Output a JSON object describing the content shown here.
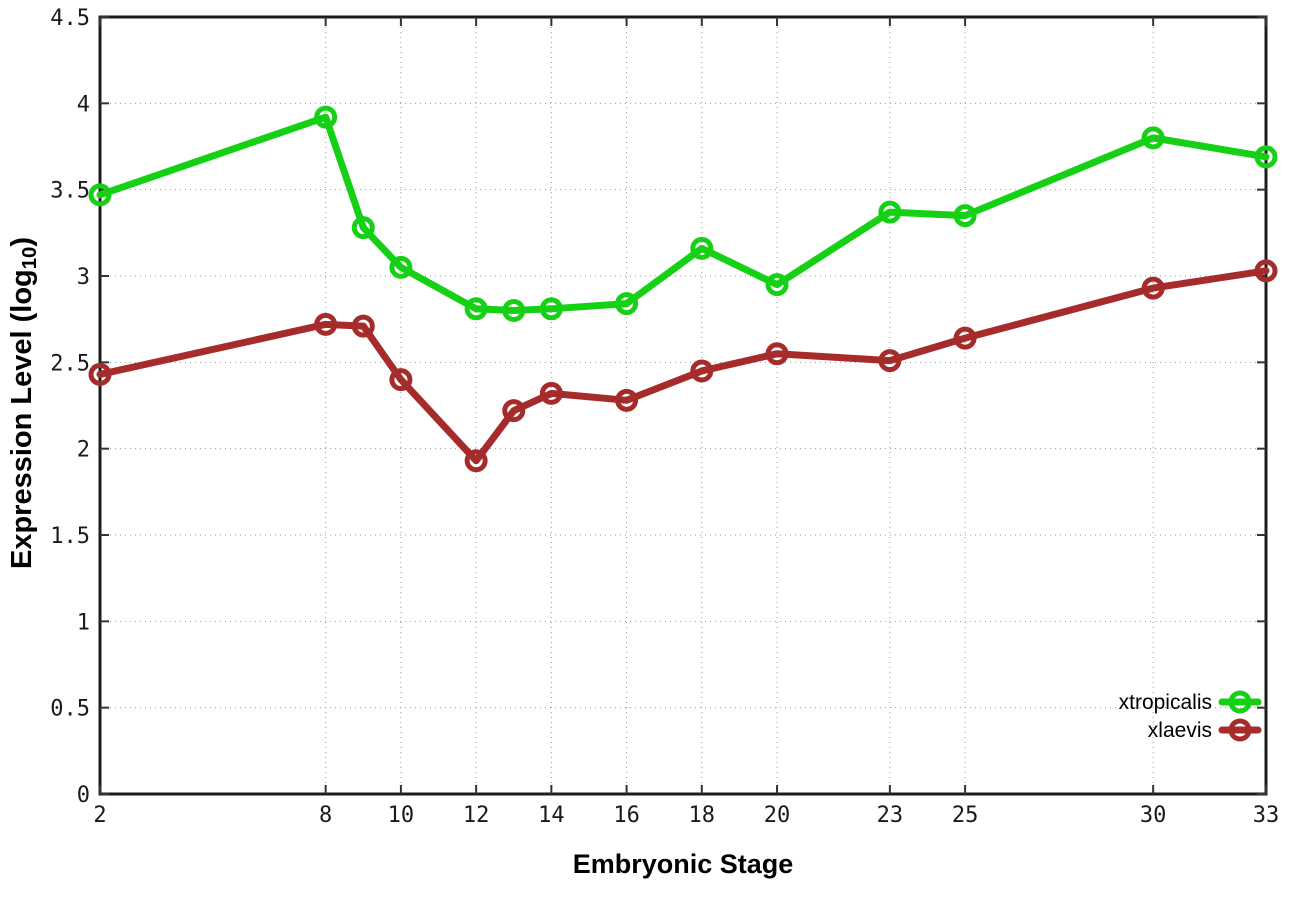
{
  "chart_data": {
    "type": "line",
    "title": "",
    "xlabel": "Embryonic Stage",
    "ylabel": {
      "pre": "Expression Level (log",
      "sub": "10",
      "post": ")"
    },
    "x": [
      2,
      8,
      9,
      10,
      12,
      13,
      14,
      16,
      18,
      20,
      23,
      25,
      30,
      33
    ],
    "x_tick_labels": [
      2,
      8,
      10,
      12,
      14,
      16,
      18,
      20,
      23,
      25,
      30,
      33
    ],
    "y_ticks": [
      0,
      0.5,
      1,
      1.5,
      2,
      2.5,
      3,
      3.5,
      4,
      4.5
    ],
    "xlim": [
      2,
      33
    ],
    "ylim": [
      0,
      4.5
    ],
    "grid": "dotted",
    "legend_position": "bottom-right",
    "series": [
      {
        "name": "xtropicalis",
        "color": "#16d016",
        "values": [
          3.47,
          3.92,
          3.28,
          3.05,
          2.81,
          2.8,
          2.81,
          2.84,
          3.16,
          2.95,
          3.37,
          3.35,
          3.8,
          3.69
        ]
      },
      {
        "name": "xlaevis",
        "color": "#a62b2b",
        "values": [
          2.43,
          2.72,
          2.71,
          2.4,
          1.93,
          2.22,
          2.32,
          2.28,
          2.45,
          2.55,
          2.51,
          2.64,
          2.93,
          3.03
        ]
      }
    ],
    "style": {
      "grid_color": "#9a9a9a",
      "border_color": "#1c1c1c",
      "tick_label_color": "#1a1a1a",
      "line_width": 7,
      "marker_radius": 9,
      "marker_stroke": 5
    }
  }
}
